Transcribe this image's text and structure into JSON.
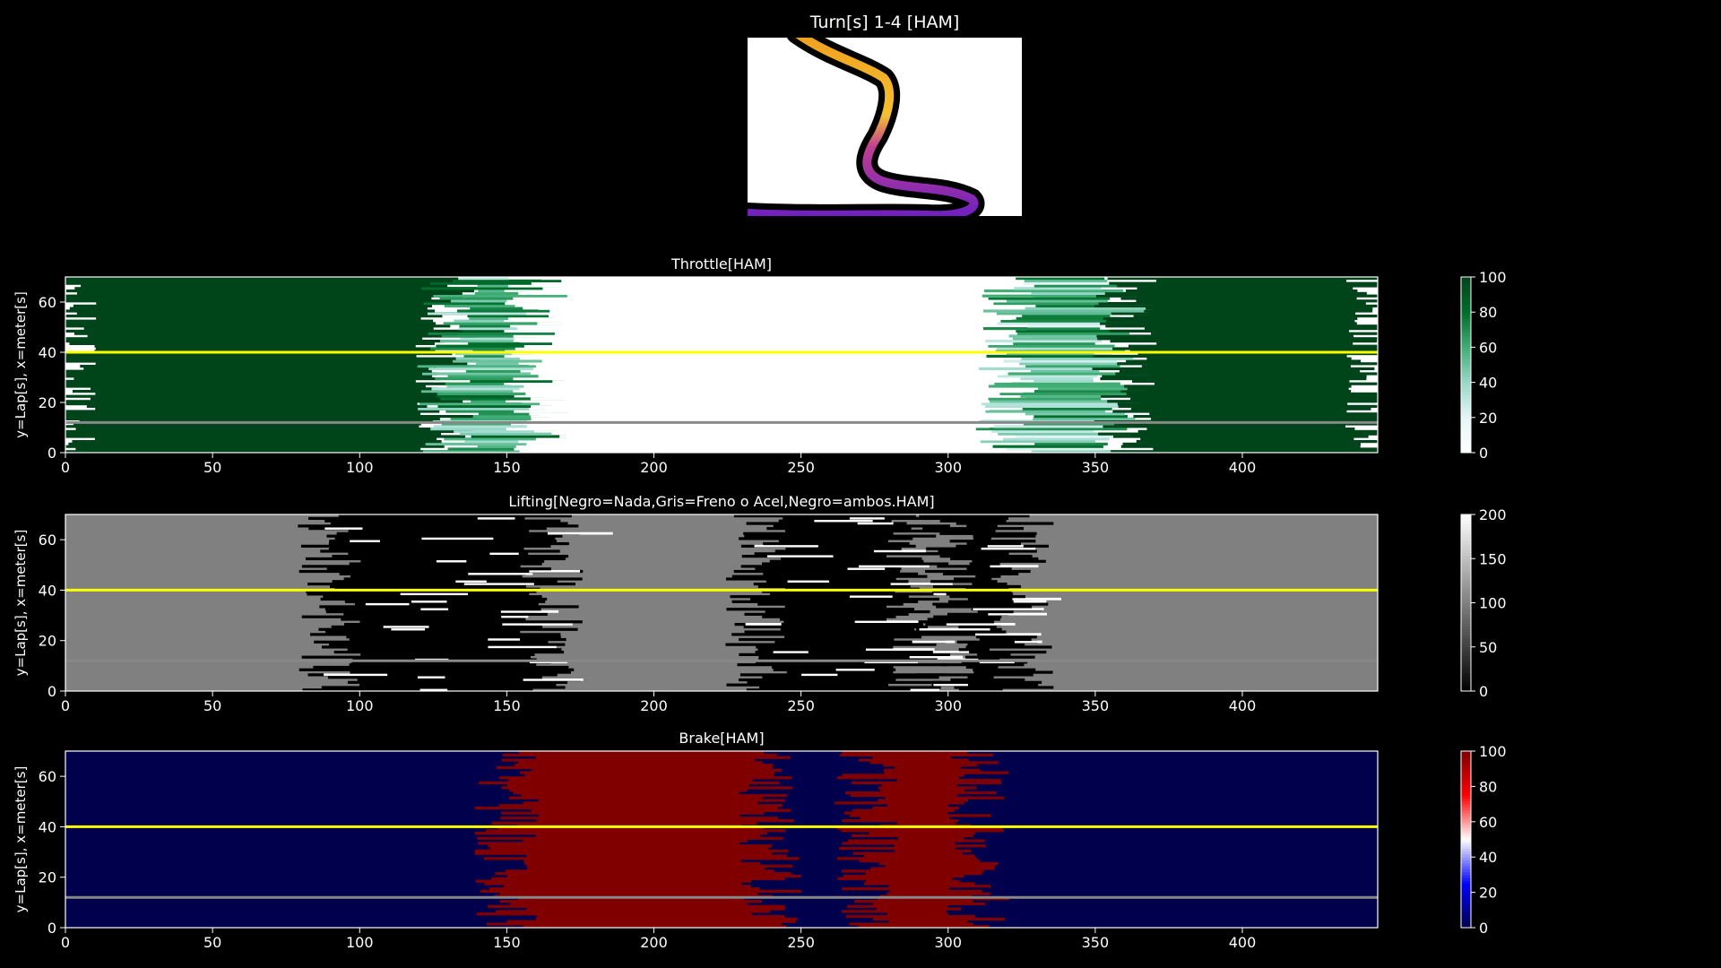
{
  "figure": {
    "title": "Turn[s] 1-4 [HAM]",
    "background": "#000000",
    "text_color": "#ffffff"
  },
  "chart_data": [
    {
      "type": "heatmap",
      "id": "throttle",
      "title": "Throttle[HAM]",
      "xlabel": "",
      "ylabel": "y=Lap[s], x=meter[s]",
      "xlim": [
        0,
        446
      ],
      "ylim": [
        0,
        70
      ],
      "xticks": [
        0,
        50,
        100,
        150,
        200,
        250,
        300,
        350,
        400
      ],
      "yticks": [
        0,
        20,
        40,
        60
      ],
      "colormap": "BuGn",
      "colors": [
        "#ffffff",
        "#e5f5f9",
        "#99d8c9",
        "#41ae76",
        "#006d2c",
        "#00441b"
      ],
      "colorbar": {
        "min": 0,
        "max": 100,
        "ticks": [
          0,
          20,
          40,
          60,
          80,
          100
        ]
      },
      "zones": [
        {
          "x0": 0,
          "x1": 130,
          "value": 100
        },
        {
          "x0": 130,
          "x1": 160,
          "value": 60
        },
        {
          "x0": 160,
          "x1": 320,
          "value": 0
        },
        {
          "x0": 320,
          "x1": 360,
          "value": 50
        },
        {
          "x0": 360,
          "x1": 446,
          "value": 100
        }
      ],
      "highlight_laps": [
        {
          "lap": 40,
          "color": "#ffff00"
        },
        {
          "lap": 12,
          "color": "#888888"
        }
      ]
    },
    {
      "type": "heatmap",
      "id": "lifting",
      "title": "Lifting[Negro=Nada,Gris=Freno o Acel,Negro=ambos.HAM]",
      "xlabel": "",
      "ylabel": "y=Lap[s], x=meter[s]",
      "xlim": [
        0,
        446
      ],
      "ylim": [
        0,
        70
      ],
      "xticks": [
        0,
        50,
        100,
        150,
        200,
        250,
        300,
        350,
        400
      ],
      "yticks": [
        0,
        20,
        40,
        60
      ],
      "colormap": "gray",
      "colors": [
        "#000000",
        "#ffffff"
      ],
      "colorbar": {
        "min": 0,
        "max": 200,
        "ticks": [
          0,
          50,
          100,
          150,
          200
        ]
      },
      "base_value": 100,
      "zones": [
        {
          "x0": 90,
          "x1": 165,
          "value": 0
        },
        {
          "x0": 235,
          "x1": 290,
          "value": 0
        },
        {
          "x0": 300,
          "x1": 325,
          "value": 0
        }
      ],
      "highlight_laps": [
        {
          "lap": 40,
          "color": "#ffff00"
        },
        {
          "lap": 12,
          "color": "#888888"
        }
      ]
    },
    {
      "type": "heatmap",
      "id": "brake",
      "title": "Brake[HAM]",
      "xlabel": "",
      "ylabel": "y=Lap[s], x=meter[s]",
      "xlim": [
        0,
        446
      ],
      "ylim": [
        0,
        70
      ],
      "xticks": [
        0,
        50,
        100,
        150,
        200,
        250,
        300,
        350,
        400
      ],
      "yticks": [
        0,
        20,
        40,
        60
      ],
      "colormap": "seismic",
      "colors": [
        "#00004d",
        "#0000ff",
        "#ffffff",
        "#ff0000",
        "#800000"
      ],
      "colorbar": {
        "min": 0,
        "max": 100,
        "ticks": [
          0,
          20,
          40,
          60,
          80,
          100
        ]
      },
      "base_value": 0,
      "zones": [
        {
          "x0": 150,
          "x1": 240,
          "value": 100
        },
        {
          "x0": 272,
          "x1": 310,
          "value": 100
        }
      ],
      "highlight_laps": [
        {
          "lap": 40,
          "color": "#ffff00"
        },
        {
          "lap": 12,
          "color": "#888888"
        }
      ]
    }
  ]
}
